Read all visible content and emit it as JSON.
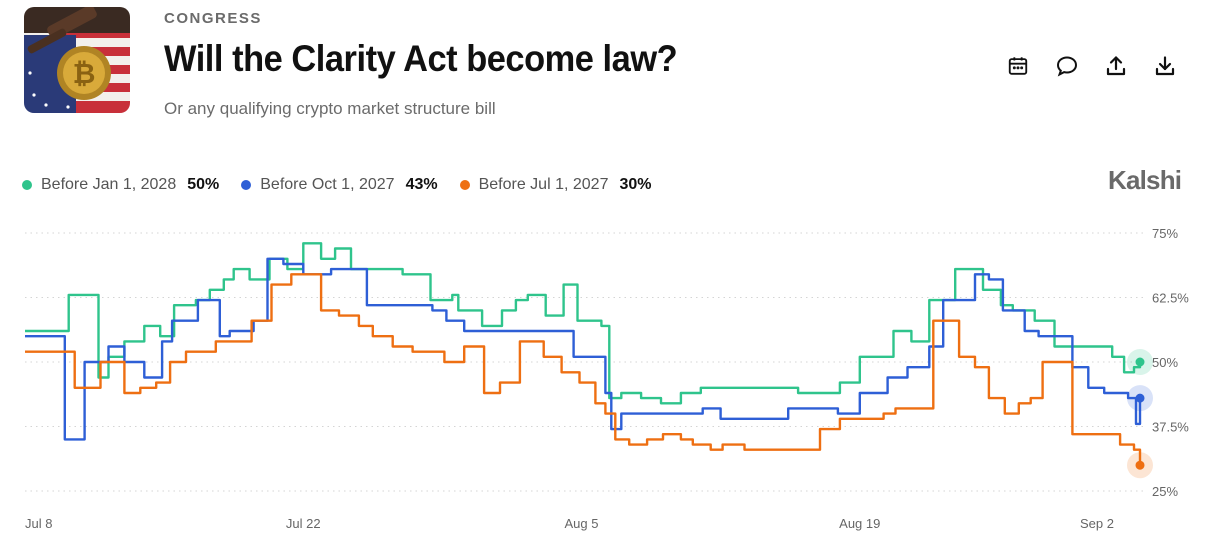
{
  "header": {
    "category": "CONGRESS",
    "title": "Will the Clarity Act become law?",
    "subtitle": "Or any qualifying crypto market structure bill"
  },
  "actions": [
    "calendar-icon",
    "comment-icon",
    "share-icon",
    "download-icon"
  ],
  "brand": "Kalshi",
  "legend": [
    {
      "name": "Before Jan 1, 2028",
      "value": "50%",
      "color": "#2fc48c"
    },
    {
      "name": "Before Oct 1, 2027",
      "value": "43%",
      "color": "#2e5fd6"
    },
    {
      "name": "Before Jul 1, 2027",
      "value": "30%",
      "color": "#ee6f12"
    }
  ],
  "chart_data": {
    "type": "line",
    "x_tick_labels": [
      "Jul 8",
      "Jul 22",
      "Aug 5",
      "Aug 19",
      "Sep 2"
    ],
    "x_tick_days": [
      0,
      14,
      28,
      42,
      56
    ],
    "y_ticks": [
      25,
      37.5,
      50,
      62.5,
      75
    ],
    "y_tick_labels": [
      "25%",
      "37.5%",
      "50%",
      "62.5%",
      "75%"
    ],
    "ylim": [
      23,
      78
    ],
    "grid": true,
    "series": [
      {
        "name": "Before Jan 1, 2028",
        "color": "#2fc48c",
        "x": [
          0,
          2,
          2.2,
          3,
          3.7,
          4.2,
          5,
          6,
          6.8,
          7.5,
          8.6,
          9.3,
          10,
          10.5,
          11.3,
          12.3,
          13.2,
          14,
          14.9,
          15.6,
          16.4,
          17.2,
          19,
          20.4,
          21.5,
          21.8,
          23,
          24,
          24.7,
          25.3,
          26.2,
          27.1,
          27.8,
          29,
          29.4,
          30,
          31,
          32,
          33,
          34,
          34.5,
          35.2,
          38.2,
          38.9,
          40.3,
          41,
          42,
          43,
          43.7,
          44.6,
          45.5,
          46,
          46.8,
          47.4,
          48.2,
          49.1,
          49.7,
          50.8,
          51.8,
          52.5,
          54.3,
          54.7,
          55.3,
          55.8,
          56.1
        ],
        "y": [
          56,
          56,
          63,
          63,
          47,
          51,
          54,
          57,
          55,
          61,
          62,
          64,
          66,
          68,
          66,
          70,
          68,
          73,
          70,
          72,
          68,
          68,
          67,
          62,
          63,
          60,
          57,
          60,
          62,
          63,
          59,
          65,
          58,
          57,
          43,
          44,
          43,
          42,
          44,
          45,
          45,
          45,
          45,
          44,
          44,
          46,
          51,
          51,
          56,
          54,
          62,
          62,
          68,
          68,
          64,
          61,
          60,
          58,
          53,
          53,
          53,
          51,
          48,
          49,
          50
        ]
      },
      {
        "name": "Before Oct 1, 2027",
        "color": "#2e5fd6",
        "x": [
          0,
          1,
          2,
          2.6,
          3,
          3.8,
          4.2,
          5,
          6,
          6.9,
          7.4,
          8,
          8.7,
          9.2,
          9.8,
          10.3,
          11.5,
          12.2,
          13,
          14,
          14.7,
          15.4,
          16.3,
          17.2,
          17.9,
          18.5,
          19.5,
          20.5,
          21.2,
          22.1,
          22.8,
          23.8,
          25,
          26.4,
          27.6,
          28.6,
          29.2,
          29.5,
          30,
          31,
          31.8,
          32.5,
          33.1,
          34.1,
          35,
          36.2,
          38.4,
          40,
          40.9,
          41.5,
          42,
          43.4,
          44.4,
          45.5,
          46.2,
          47,
          47.8,
          48.5,
          49.2,
          50.3,
          51,
          51.8,
          52.7,
          53.5,
          54.3,
          55,
          55.5,
          55.9,
          56.1
        ],
        "y": [
          55,
          55,
          35,
          35,
          50,
          50,
          53,
          50,
          47,
          54,
          58,
          58,
          62,
          62,
          55,
          56,
          58,
          70,
          69,
          67,
          67,
          68,
          68,
          61,
          61,
          61,
          61,
          60,
          58,
          56,
          56,
          56,
          56,
          56,
          51,
          51,
          44,
          37,
          40,
          40,
          40,
          40,
          40,
          41,
          39,
          39,
          41,
          41,
          40,
          40,
          44,
          47,
          49,
          53,
          62,
          62,
          67,
          66,
          60,
          56,
          55,
          55,
          49,
          45,
          44,
          44,
          43,
          38,
          43
        ]
      },
      {
        "name": "Before Jul 1, 2027",
        "color": "#ee6f12",
        "x": [
          0,
          1.5,
          2.5,
          3,
          3.8,
          4.3,
          5,
          5.8,
          6.6,
          7.3,
          8.1,
          8.8,
          9.6,
          10.4,
          11.4,
          12.4,
          13.4,
          14.1,
          14.9,
          15.8,
          16.8,
          17.5,
          18.5,
          19.5,
          20.3,
          21.1,
          22.1,
          23.1,
          23.9,
          24.9,
          26.1,
          27,
          27.9,
          28.7,
          29.2,
          29.7,
          30.4,
          31.3,
          32.1,
          33,
          33.6,
          34.5,
          35.1,
          36.2,
          37,
          38,
          39,
          40,
          41,
          41.9,
          42.6,
          43.2,
          43.8,
          45,
          45.7,
          46.2,
          47,
          47.8,
          48.5,
          49.3,
          50,
          50.6,
          51.2,
          52,
          52.7,
          53.5,
          54,
          54.4,
          55.1,
          55.8,
          56.1
        ],
        "y": [
          52,
          52,
          45,
          45,
          50,
          50,
          44,
          45,
          46,
          50,
          52,
          52,
          54,
          54,
          58,
          65,
          67,
          67,
          60,
          59,
          57,
          55,
          53,
          52,
          52,
          50,
          53,
          44,
          46,
          54,
          51,
          48,
          46,
          42,
          40,
          35,
          34,
          35,
          36,
          35,
          34,
          33,
          34,
          33,
          33,
          33,
          33,
          37,
          39,
          39,
          39,
          40,
          41,
          41,
          58,
          58,
          51,
          49,
          43,
          40,
          42,
          43,
          50,
          50,
          36,
          36,
          36,
          36,
          34,
          33,
          30
        ]
      }
    ]
  }
}
